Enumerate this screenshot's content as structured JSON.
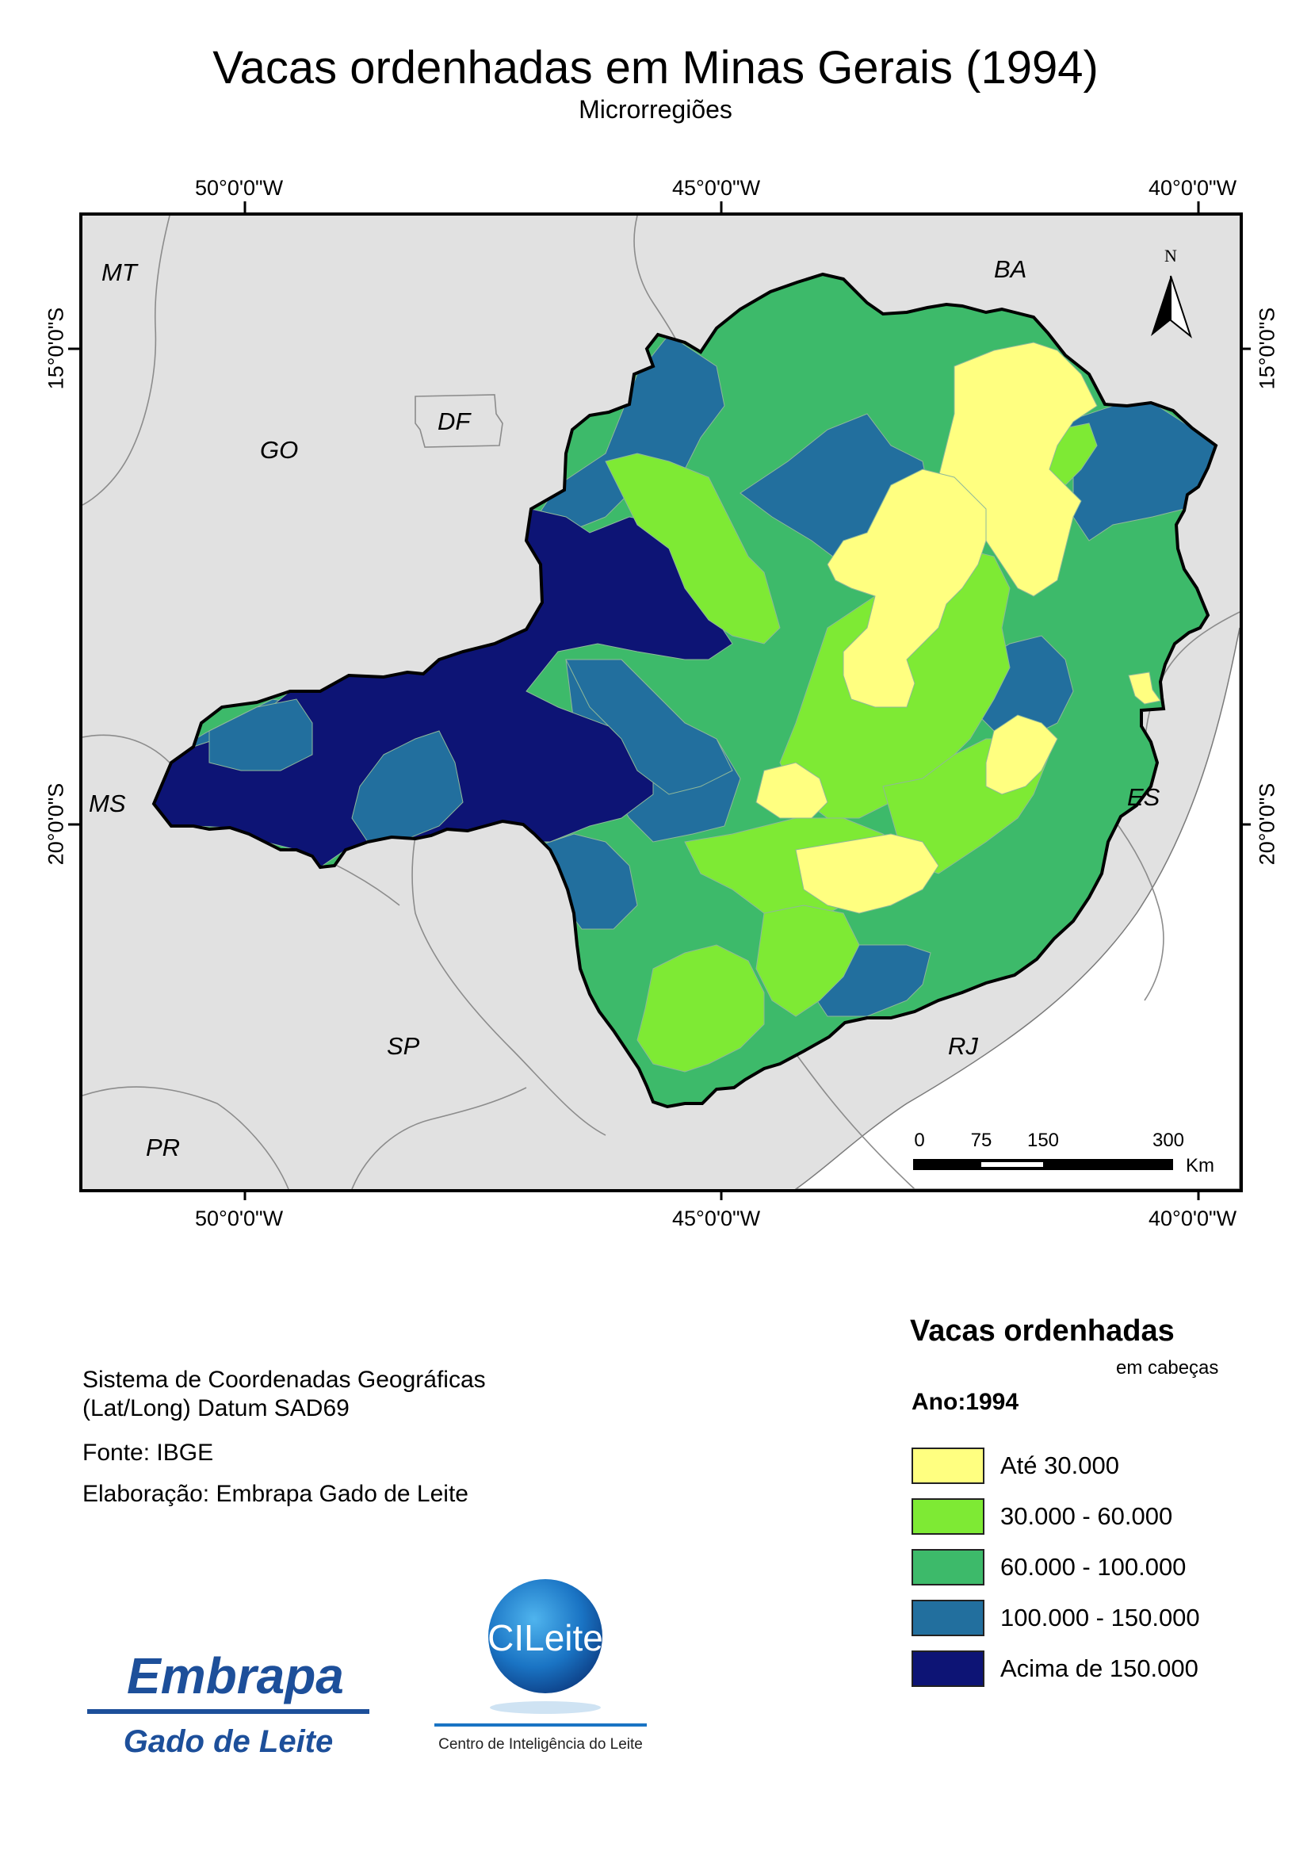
{
  "title": "Vacas ordenhadas em Minas Gerais (1994)",
  "subtitle": "Microrregiões",
  "graticule": {
    "longitudes": [
      "50°0'0\"W",
      "45°0'0\"W",
      "40°0'0\"W"
    ],
    "latitudes": [
      "15°0'0\"S",
      "20°0'0\"S"
    ]
  },
  "states": [
    "MT",
    "BA",
    "GO",
    "DF",
    "MS",
    "ES",
    "SP",
    "RJ",
    "PR"
  ],
  "north_arrow": {
    "label": "N"
  },
  "scale_bar": {
    "ticks": [
      "0",
      "75",
      "150",
      "300"
    ],
    "unit": "Km"
  },
  "legend": {
    "title": "Vacas ordenhadas",
    "subtitle": "em cabeças",
    "year": "Ano:1994",
    "classes": [
      {
        "label": "Até 30.000",
        "color": "#ffff80"
      },
      {
        "label": "30.000 - 60.000",
        "color": "#7eea34"
      },
      {
        "label": "60.000 - 100.000",
        "color": "#3dba6a"
      },
      {
        "label": "100.000 - 150.000",
        "color": "#226f9e"
      },
      {
        "label": "Acima de 150.000",
        "color": "#0d1475"
      }
    ]
  },
  "info": {
    "coord_system_1": "Sistema de Coordenadas Geográficas",
    "coord_system_2": "(Lat/Long) Datum SAD69",
    "source": "Fonte: IBGE",
    "author": "Elaboração: Embrapa Gado de Leite"
  },
  "logos": {
    "embrapa_name": "Embrapa",
    "embrapa_unit": "Gado de Leite",
    "cileite_name": "CILeite",
    "cileite_tagline": "Centro de Inteligência do Leite"
  }
}
